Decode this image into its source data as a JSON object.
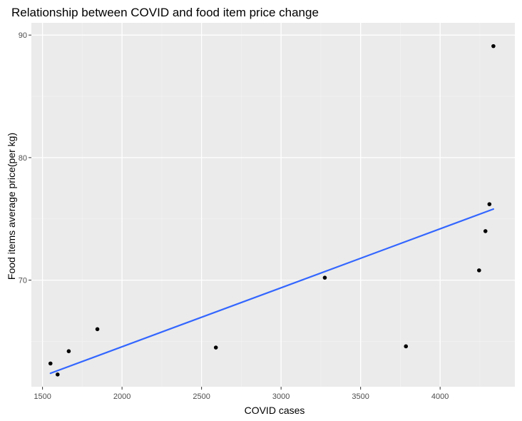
{
  "chart_data": {
    "type": "scatter",
    "title": "Relationship between COVID and food item price change",
    "xlabel": "COVID cases",
    "ylabel": "Food items average price(per kg)",
    "xlim": [
      1430,
      4470
    ],
    "ylim": [
      61.3,
      91.0
    ],
    "x_ticks": [
      1500,
      2000,
      2500,
      3000,
      3500,
      4000
    ],
    "y_ticks": [
      70,
      80,
      90
    ],
    "points": [
      {
        "x": 1550,
        "y": 63.2
      },
      {
        "x": 1595,
        "y": 62.3
      },
      {
        "x": 1665,
        "y": 64.2
      },
      {
        "x": 1845,
        "y": 66.0
      },
      {
        "x": 2590,
        "y": 64.5
      },
      {
        "x": 3275,
        "y": 70.2
      },
      {
        "x": 3785,
        "y": 64.6
      },
      {
        "x": 4245,
        "y": 70.8
      },
      {
        "x": 4285,
        "y": 74.0
      },
      {
        "x": 4310,
        "y": 76.2
      },
      {
        "x": 4335,
        "y": 89.1
      }
    ],
    "trend_line": {
      "type": "linear fit",
      "x": [
        1550,
        4335
      ],
      "y": [
        62.4,
        75.8
      ]
    },
    "grid": true,
    "legend": "none",
    "colors": {
      "panel_background": "#ebebeb",
      "grid_major": "#ffffff",
      "grid_minor": "#f2f2f2",
      "point": "#000000",
      "trend_line": "#3366ff",
      "tick_label": "#4d4d4d"
    }
  }
}
